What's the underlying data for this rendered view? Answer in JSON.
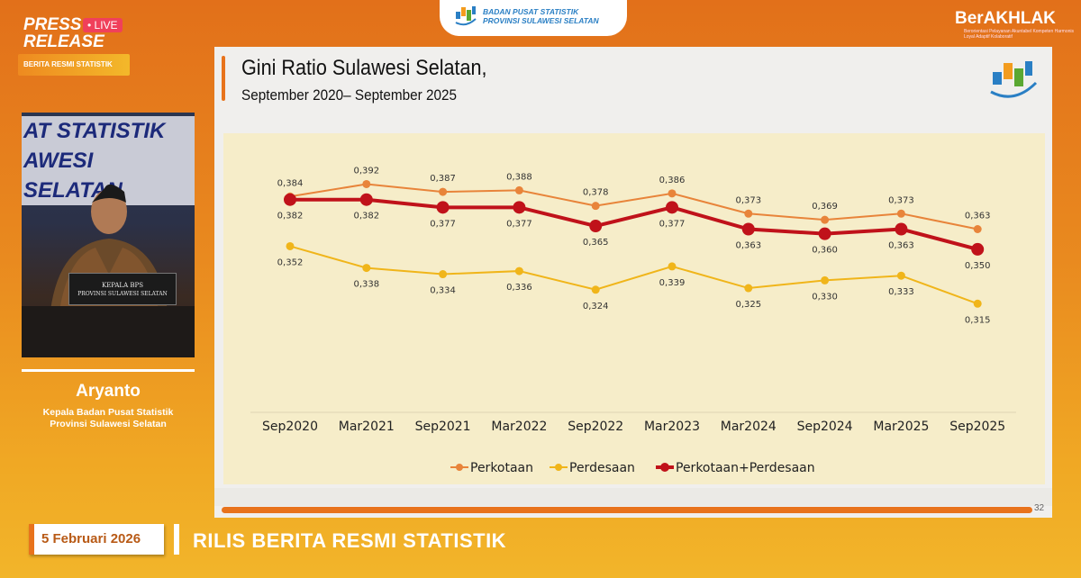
{
  "overlay": {
    "press_release": "PRESS\nRELEASE",
    "live_label": "LIVE",
    "berita_label": "BERITA RESMI STATISTIK",
    "bps_header": {
      "line1": "BADAN PUSAT STATISTIK",
      "line2": "PROVINSI SULAWESI SELATAN"
    },
    "berakhlak": "BerAKHLAK",
    "berakhlak_tagline": "Berorientasi Pelayanan Akuntabel Kompeten Harmonis Loyal Adaptif Kolaboratif",
    "speaker": {
      "name": "Aryanto",
      "role_line1": "Kepala Badan Pusat Statistik",
      "role_line2": "Provinsi Sulawesi Selatan"
    },
    "video": {
      "wall_line1": "AT STATISTIK",
      "wall_line2": "AWESI SELATAN",
      "nameplate_line1": "KEPALA BPS",
      "nameplate_line2": "PROVINSI SULAWESI SELATAN"
    },
    "date": "5 Februari 2026",
    "ticker": "RILIS BERITA RESMI STATISTIK"
  },
  "slide": {
    "title": "Gini Ratio Sulawesi Selatan,",
    "subtitle": "September 2020– September 2025",
    "page_number": "32"
  },
  "colors": {
    "perkotaan": "#e8843a",
    "perdesaan": "#f0b51a",
    "gabungan": "#c0121a",
    "accent": "#e8731c"
  },
  "chart_data": {
    "type": "line",
    "categories": [
      "Sep2020",
      "Mar2021",
      "Sep2021",
      "Mar2022",
      "Sep2022",
      "Mar2023",
      "Mar2024",
      "Sep2024",
      "Mar2025",
      "Sep2025"
    ],
    "series": [
      {
        "name": "Perkotaan",
        "values": [
          0.384,
          0.392,
          0.387,
          0.388,
          0.378,
          0.386,
          0.373,
          0.369,
          0.373,
          0.363
        ],
        "labels": [
          "0,384",
          "0,392",
          "0,387",
          "0,388",
          "0,378",
          "0,386",
          "0,373",
          "0,369",
          "0,373",
          "0,363"
        ],
        "label_position": "above"
      },
      {
        "name": "Perdesaan",
        "values": [
          0.352,
          0.338,
          0.334,
          0.336,
          0.324,
          0.339,
          0.325,
          0.33,
          0.333,
          0.315
        ],
        "labels": [
          "0,352",
          "0,338",
          "0,334",
          "0,336",
          "0,324",
          "0,339",
          "0,325",
          "0,330",
          "0,333",
          "0,315"
        ],
        "label_position": "below"
      },
      {
        "name": "Perkotaan+Perdesaan",
        "values": [
          0.382,
          0.382,
          0.377,
          0.377,
          0.365,
          0.377,
          0.363,
          0.36,
          0.363,
          0.35
        ],
        "labels": [
          "0,382",
          "0,382",
          "0,377",
          "0,377",
          "0,365",
          "0,377",
          "0,363",
          "0,360",
          "0,363",
          "0,350"
        ],
        "label_position": "below"
      }
    ],
    "ylim": [
      0.245,
      0.412
    ],
    "grid": false,
    "legend": "bottom"
  }
}
